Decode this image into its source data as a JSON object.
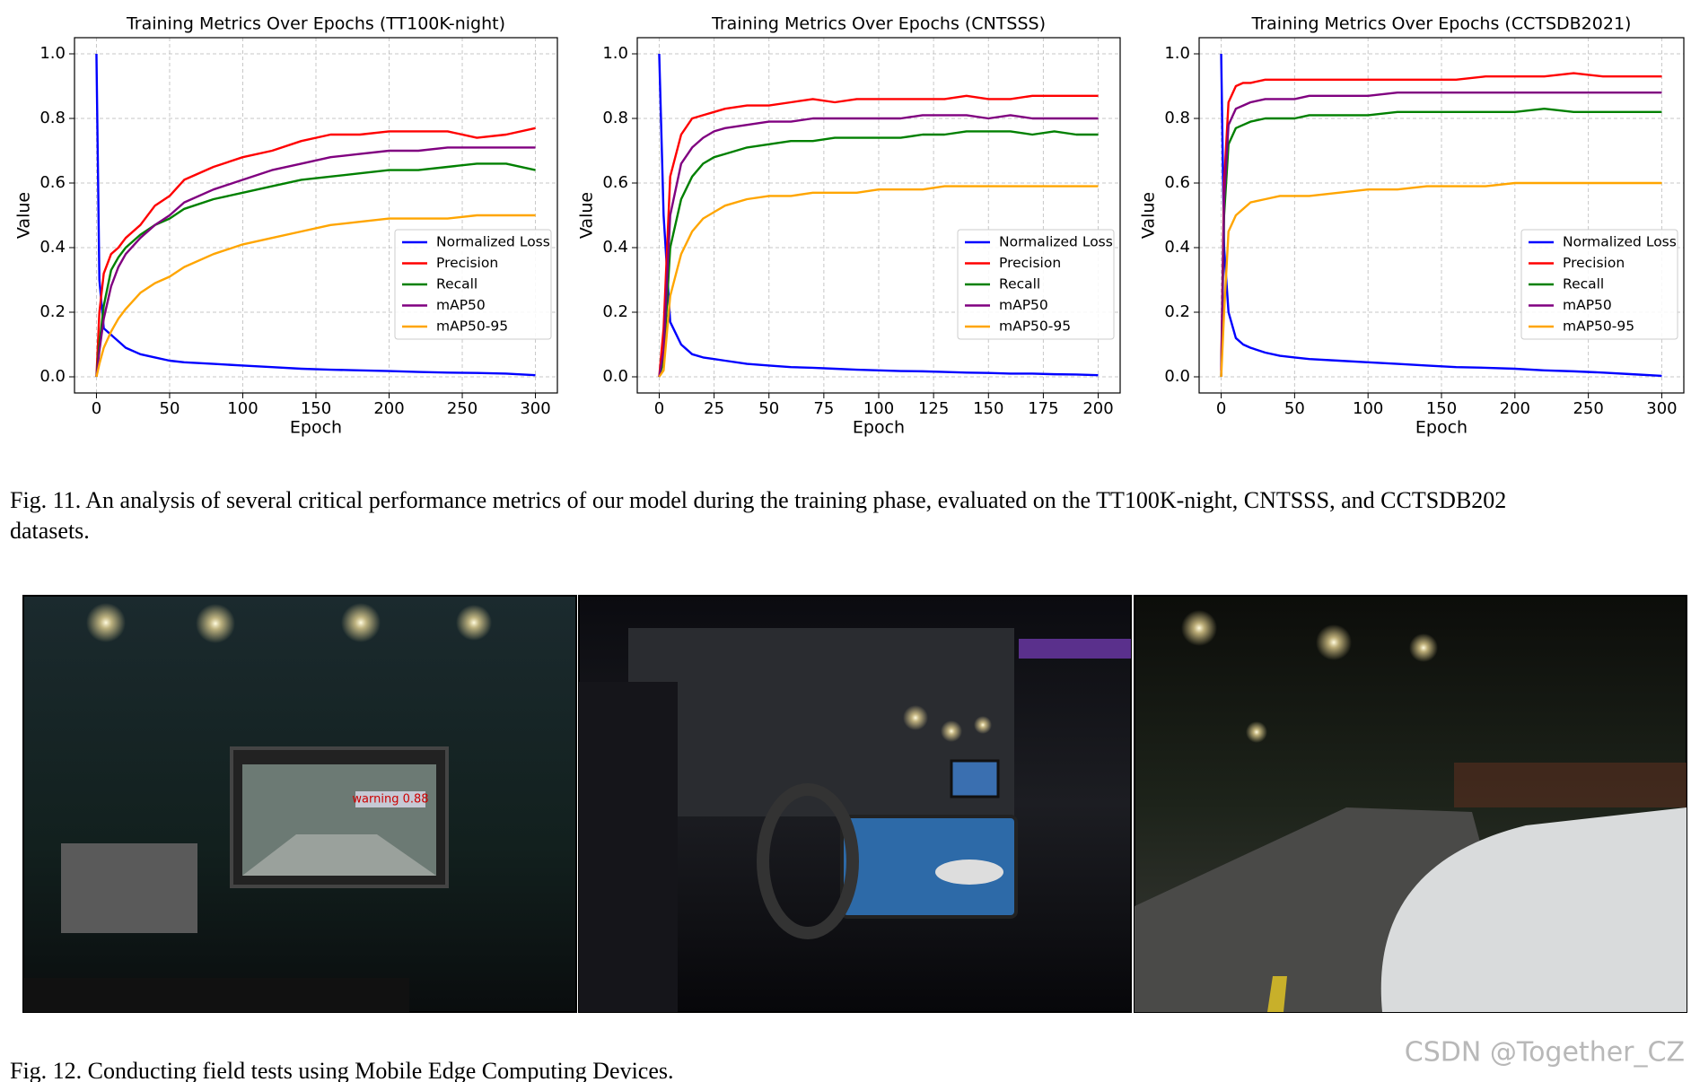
{
  "chart_data": [
    {
      "type": "line",
      "title": "Training Metrics Over Epochs (TT100K-night)",
      "x_label": "Epoch",
      "y_label": "Value",
      "x": [
        0,
        2,
        5,
        10,
        15,
        20,
        30,
        40,
        50,
        60,
        80,
        100,
        120,
        140,
        160,
        180,
        200,
        220,
        240,
        260,
        280,
        300
      ],
      "xlim": [
        -15,
        315
      ],
      "xticks": [
        0,
        50,
        100,
        150,
        200,
        250,
        300
      ],
      "ylim": [
        -0.05,
        1.05
      ],
      "yticks": [
        {
          "value": 0,
          "label": "0.0"
        },
        0.2,
        0.4,
        0.6,
        0.8,
        {
          "value": 1,
          "label": "1.0"
        }
      ],
      "grid": true,
      "legend": "lower right",
      "series": [
        {
          "name": "Normalized Loss",
          "color": "#0000ff",
          "values": [
            1.0,
            0.3,
            0.15,
            0.13,
            0.11,
            0.09,
            0.07,
            0.06,
            0.05,
            0.045,
            0.04,
            0.035,
            0.03,
            0.025,
            0.022,
            0.02,
            0.018,
            0.015,
            0.013,
            0.012,
            0.01,
            0.005
          ]
        },
        {
          "name": "Precision",
          "color": "#ff0000",
          "values": [
            0,
            0.2,
            0.32,
            0.38,
            0.4,
            0.43,
            0.47,
            0.53,
            0.56,
            0.61,
            0.65,
            0.68,
            0.7,
            0.73,
            0.75,
            0.75,
            0.76,
            0.76,
            0.76,
            0.74,
            0.75,
            0.77
          ]
        },
        {
          "name": "Recall",
          "color": "#008000",
          "values": [
            0,
            0.1,
            0.22,
            0.33,
            0.37,
            0.4,
            0.44,
            0.47,
            0.49,
            0.52,
            0.55,
            0.57,
            0.59,
            0.61,
            0.62,
            0.63,
            0.64,
            0.64,
            0.65,
            0.66,
            0.66,
            0.64
          ]
        },
        {
          "name": "mAP50",
          "color": "#800080",
          "values": [
            0,
            0.08,
            0.18,
            0.28,
            0.34,
            0.38,
            0.43,
            0.47,
            0.5,
            0.54,
            0.58,
            0.61,
            0.64,
            0.66,
            0.68,
            0.69,
            0.7,
            0.7,
            0.71,
            0.71,
            0.71,
            0.71
          ]
        },
        {
          "name": "mAP50-95",
          "color": "#ffa500",
          "values": [
            0,
            0.04,
            0.09,
            0.14,
            0.18,
            0.21,
            0.26,
            0.29,
            0.31,
            0.34,
            0.38,
            0.41,
            0.43,
            0.45,
            0.47,
            0.48,
            0.49,
            0.49,
            0.49,
            0.5,
            0.5,
            0.5
          ]
        }
      ]
    },
    {
      "type": "line",
      "title": "Training Metrics Over Epochs (CNTSSS)",
      "x_label": "Epoch",
      "y_label": "Value",
      "x": [
        0,
        2,
        5,
        10,
        15,
        20,
        25,
        30,
        40,
        50,
        60,
        70,
        80,
        90,
        100,
        110,
        120,
        130,
        140,
        150,
        160,
        170,
        180,
        190,
        200
      ],
      "xlim": [
        -10,
        210
      ],
      "xticks": [
        0,
        25,
        50,
        75,
        100,
        125,
        150,
        175,
        200
      ],
      "ylim": [
        -0.05,
        1.05
      ],
      "yticks": [
        {
          "value": 0,
          "label": "0.0"
        },
        0.2,
        0.4,
        0.6,
        0.8,
        {
          "value": 1,
          "label": "1.0"
        }
      ],
      "grid": true,
      "legend": "lower right",
      "series": [
        {
          "name": "Normalized Loss",
          "color": "#0000ff",
          "values": [
            1.0,
            0.5,
            0.17,
            0.1,
            0.07,
            0.06,
            0.055,
            0.05,
            0.04,
            0.035,
            0.03,
            0.028,
            0.025,
            0.022,
            0.02,
            0.018,
            0.017,
            0.015,
            0.013,
            0.012,
            0.01,
            0.01,
            0.008,
            0.007,
            0.005
          ]
        },
        {
          "name": "Precision",
          "color": "#ff0000",
          "values": [
            0,
            0.15,
            0.62,
            0.75,
            0.8,
            0.81,
            0.82,
            0.83,
            0.84,
            0.84,
            0.85,
            0.86,
            0.85,
            0.86,
            0.86,
            0.86,
            0.86,
            0.86,
            0.87,
            0.86,
            0.86,
            0.87,
            0.87,
            0.87,
            0.87
          ]
        },
        {
          "name": "Recall",
          "color": "#008000",
          "values": [
            0,
            0.05,
            0.4,
            0.55,
            0.62,
            0.66,
            0.68,
            0.69,
            0.71,
            0.72,
            0.73,
            0.73,
            0.74,
            0.74,
            0.74,
            0.74,
            0.75,
            0.75,
            0.76,
            0.76,
            0.76,
            0.75,
            0.76,
            0.75,
            0.75
          ]
        },
        {
          "name": "mAP50",
          "color": "#800080",
          "values": [
            0,
            0.08,
            0.5,
            0.66,
            0.71,
            0.74,
            0.76,
            0.77,
            0.78,
            0.79,
            0.79,
            0.8,
            0.8,
            0.8,
            0.8,
            0.8,
            0.81,
            0.81,
            0.81,
            0.8,
            0.81,
            0.8,
            0.8,
            0.8,
            0.8
          ]
        },
        {
          "name": "mAP50-95",
          "color": "#ffa500",
          "values": [
            0,
            0.02,
            0.25,
            0.38,
            0.45,
            0.49,
            0.51,
            0.53,
            0.55,
            0.56,
            0.56,
            0.57,
            0.57,
            0.57,
            0.58,
            0.58,
            0.58,
            0.59,
            0.59,
            0.59,
            0.59,
            0.59,
            0.59,
            0.59,
            0.59
          ]
        }
      ]
    },
    {
      "type": "line",
      "title": "Training Metrics Over Epochs (CCTSDB2021)",
      "x_label": "Epoch",
      "y_label": "Value",
      "x": [
        0,
        2,
        5,
        10,
        15,
        20,
        30,
        40,
        50,
        60,
        80,
        100,
        120,
        140,
        160,
        180,
        200,
        220,
        240,
        260,
        280,
        300
      ],
      "xlim": [
        -15,
        315
      ],
      "xticks": [
        0,
        50,
        100,
        150,
        200,
        250,
        300
      ],
      "ylim": [
        -0.05,
        1.05
      ],
      "yticks": [
        {
          "value": 0,
          "label": "0.0"
        },
        0.2,
        0.4,
        0.6,
        0.8,
        {
          "value": 1,
          "label": "1.0"
        }
      ],
      "grid": true,
      "legend": "lower right",
      "series": [
        {
          "name": "Normalized Loss",
          "color": "#0000ff",
          "values": [
            1.0,
            0.4,
            0.2,
            0.12,
            0.1,
            0.09,
            0.075,
            0.065,
            0.06,
            0.055,
            0.05,
            0.045,
            0.04,
            0.035,
            0.03,
            0.028,
            0.025,
            0.02,
            0.017,
            0.013,
            0.008,
            0.003
          ]
        },
        {
          "name": "Precision",
          "color": "#ff0000",
          "values": [
            0.02,
            0.6,
            0.85,
            0.9,
            0.91,
            0.91,
            0.92,
            0.92,
            0.92,
            0.92,
            0.92,
            0.92,
            0.92,
            0.92,
            0.92,
            0.93,
            0.93,
            0.93,
            0.94,
            0.93,
            0.93,
            0.93
          ]
        },
        {
          "name": "Recall",
          "color": "#008000",
          "values": [
            0,
            0.5,
            0.72,
            0.77,
            0.78,
            0.79,
            0.8,
            0.8,
            0.8,
            0.81,
            0.81,
            0.81,
            0.82,
            0.82,
            0.82,
            0.82,
            0.82,
            0.83,
            0.82,
            0.82,
            0.82,
            0.82
          ]
        },
        {
          "name": "mAP50",
          "color": "#800080",
          "values": [
            0,
            0.55,
            0.78,
            0.83,
            0.84,
            0.85,
            0.86,
            0.86,
            0.86,
            0.87,
            0.87,
            0.87,
            0.88,
            0.88,
            0.88,
            0.88,
            0.88,
            0.88,
            0.88,
            0.88,
            0.88,
            0.88
          ]
        },
        {
          "name": "mAP50-95",
          "color": "#ffa500",
          "values": [
            0,
            0.2,
            0.45,
            0.5,
            0.52,
            0.54,
            0.55,
            0.56,
            0.56,
            0.56,
            0.57,
            0.58,
            0.58,
            0.59,
            0.59,
            0.59,
            0.6,
            0.6,
            0.6,
            0.6,
            0.6,
            0.6
          ]
        }
      ]
    }
  ],
  "fig11_caption": {
    "lines": [
      "Fig. 11.  An analysis of several critical performance metrics of our model during the training phase, evaluated on the TT100K-night, CNTSSS, and CCTSDB202",
      "datasets."
    ]
  },
  "photos": {
    "detection_label": "warning 0.88"
  },
  "fig12_caption": "Fig. 12.  Conducting field tests using Mobile Edge Computing Devices.",
  "watermark": "CSDN @Together_CZ"
}
